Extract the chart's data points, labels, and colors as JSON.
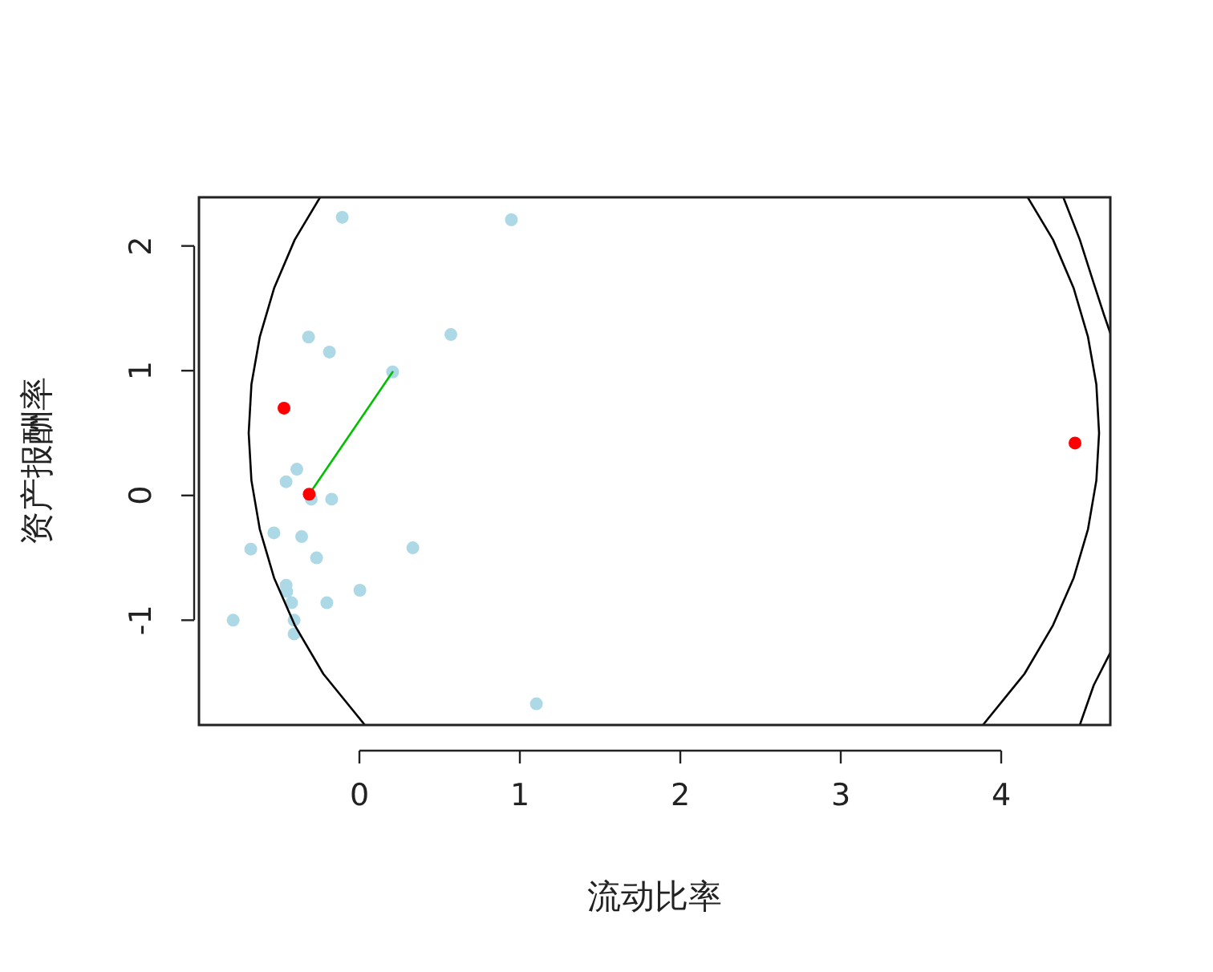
{
  "chart_data": {
    "type": "scatter",
    "xlabel": "流动比率",
    "ylabel": "资产报酬率",
    "xlim": [
      -1.0,
      4.68
    ],
    "ylim": [
      -1.84,
      2.39
    ],
    "xticks": [
      0,
      1,
      2,
      3,
      4
    ],
    "yticks": [
      -1,
      0,
      1,
      2
    ],
    "grid": false,
    "marker": "circle",
    "series": [
      {
        "color": "#add8e6",
        "x": [
          -0.107,
          0.947,
          -0.317,
          -0.187,
          0.57,
          0.207,
          -0.39,
          -0.457,
          -0.3,
          -0.173,
          -0.533,
          -0.36,
          -0.677,
          0.333,
          -0.267,
          0.003,
          -0.457,
          -0.453,
          -0.423,
          -0.203,
          -0.787,
          -0.407,
          -0.407,
          1.103
        ],
        "values": [
          2.23,
          2.21,
          1.27,
          1.15,
          1.29,
          0.99,
          0.21,
          0.11,
          -0.03,
          -0.03,
          -0.3,
          -0.33,
          -0.43,
          -0.42,
          -0.5,
          -0.76,
          -0.72,
          -0.77,
          -0.86,
          -0.86,
          -1.0,
          -1.0,
          -1.11,
          -1.67
        ]
      },
      {
        "type": "line",
        "color": "#000000",
        "marker": "none",
        "line_style": "solid",
        "x": [
          -0.245,
          -0.403,
          -0.532,
          -0.621,
          -0.673,
          -0.69,
          -0.673,
          -0.621,
          -0.532,
          -0.403,
          -0.225,
          0.034
        ],
        "values": [
          2.39,
          2.05,
          1.66,
          1.27,
          0.89,
          0.5,
          0.12,
          -0.27,
          -0.66,
          -1.04,
          -1.43,
          -1.84
        ]
      },
      {
        "type": "line",
        "color": "#000000",
        "marker": "none",
        "line_style": "solid",
        "x": [
          4.165,
          4.323,
          4.452,
          4.541,
          4.593,
          4.61,
          4.593,
          4.541,
          4.452,
          4.323,
          4.145,
          3.886
        ],
        "values": [
          2.39,
          2.05,
          1.66,
          1.27,
          0.89,
          0.5,
          0.12,
          -0.27,
          -0.66,
          -1.04,
          -1.43,
          -1.84
        ]
      },
      {
        "type": "line",
        "color": "#000000",
        "marker": "none",
        "line_style": "solid",
        "x": [
          4.387,
          4.49,
          4.577,
          4.64,
          4.68
        ],
        "values": [
          2.39,
          2.05,
          1.7,
          1.45,
          1.3
        ]
      },
      {
        "type": "line",
        "color": "#000000",
        "marker": "none",
        "line_style": "solid",
        "x": [
          4.68,
          4.577,
          4.49
        ],
        "values": [
          -1.26,
          -1.52,
          -1.84
        ]
      },
      {
        "type": "line",
        "color": "#00c000",
        "marker": "none",
        "line_style": "solid",
        "x": [
          -0.313,
          0.207
        ],
        "values": [
          0.01,
          0.99
        ]
      },
      {
        "color": "#ff0000",
        "x": [
          -0.47,
          -0.313,
          4.46
        ],
        "values": [
          0.7,
          0.01,
          0.42
        ]
      }
    ]
  }
}
